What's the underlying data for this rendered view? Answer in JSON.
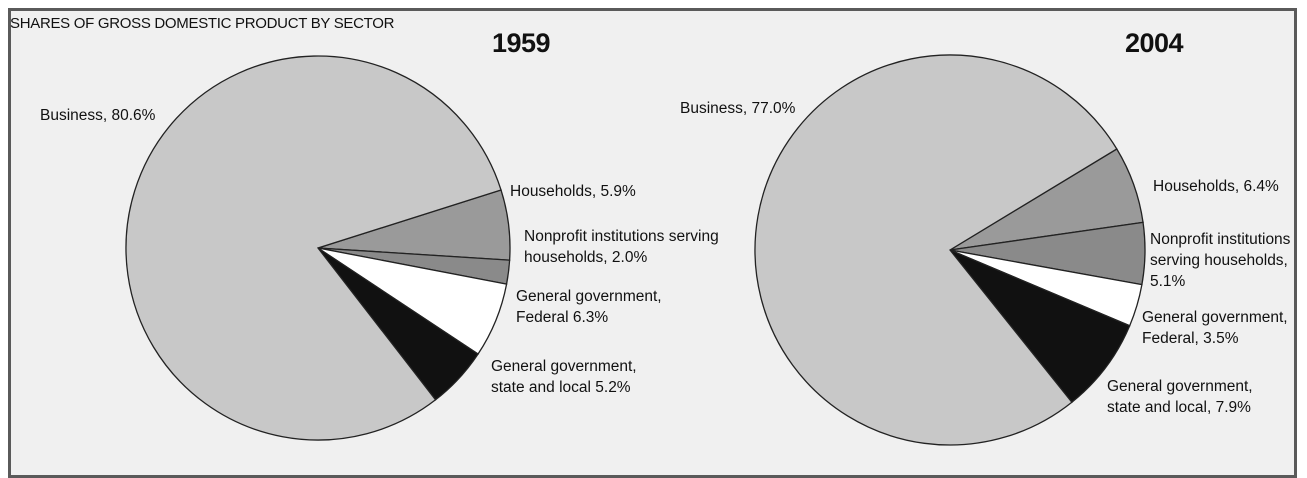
{
  "figure_title": "SHARES OF GROSS DOMESTIC PRODUCT BY SECTOR",
  "colors": {
    "Business": "#c8c8c8",
    "Households": "#9a9a9a",
    "Nonprofit institutions serving households": "#8a8a8a",
    "General government, Federal": "#ffffff",
    "General government, state and local": "#111111"
  },
  "chart_data": [
    {
      "type": "pie",
      "title": "1959",
      "slices": [
        {
          "name": "Business",
          "value": 80.6,
          "label": [
            "Business, 80.6%"
          ]
        },
        {
          "name": "Households",
          "value": 5.9,
          "label": [
            "Households, 5.9%"
          ]
        },
        {
          "name": "Nonprofit institutions serving households",
          "value": 2.0,
          "label": [
            "Nonprofit institutions serving",
            "households, 2.0%"
          ]
        },
        {
          "name": "General government, Federal",
          "value": 6.3,
          "label": [
            "General government,",
            "Federal 6.3%"
          ]
        },
        {
          "name": "General government, state and local",
          "value": 5.2,
          "label": [
            "General government,",
            "state and local 5.2%"
          ]
        }
      ]
    },
    {
      "type": "pie",
      "title": "2004",
      "slices": [
        {
          "name": "Business",
          "value": 77.0,
          "label": [
            "Business, 77.0%"
          ]
        },
        {
          "name": "Households",
          "value": 6.4,
          "label": [
            "Households, 6.4%"
          ]
        },
        {
          "name": "Nonprofit institutions serving households",
          "value": 5.1,
          "label": [
            "Nonprofit institutions",
            "serving households,",
            "5.1%"
          ]
        },
        {
          "name": "General government, Federal",
          "value": 3.5,
          "label": [
            "General government,",
            "Federal, 3.5%"
          ]
        },
        {
          "name": "General government, state and local",
          "value": 7.9,
          "label": [
            "General government,",
            "state and local, 7.9%"
          ]
        }
      ]
    }
  ]
}
